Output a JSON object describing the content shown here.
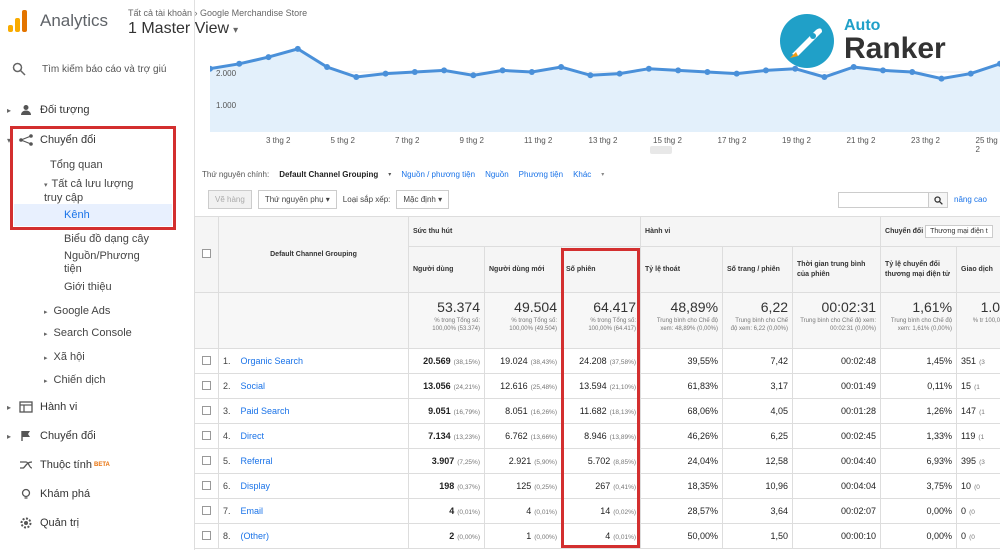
{
  "app": {
    "name": "Analytics",
    "crumb_all": "Tất cả tài khoản",
    "crumb_property": "Google Merchandise Store",
    "view_title": "1 Master View"
  },
  "search": {
    "placeholder": "Tìm kiếm báo cáo và trợ giú"
  },
  "nav": {
    "audience": "Đối tượng",
    "conversions_top": "Chuyển đổi",
    "overview": "Tổng quan",
    "all_traffic": "Tất cả lưu lượng truy cập",
    "channels": "Kênh",
    "treemap": "Biểu đồ dạng cây",
    "source_medium": "Nguồn/Phương tiện",
    "referrals": "Giới thiệu",
    "google_ads": "Google Ads",
    "search_console": "Search Console",
    "social": "Xã hội",
    "campaigns": "Chiến dịch",
    "behavior": "Hành vi",
    "conversions": "Chuyển đổi",
    "attribution": "Thuộc tính",
    "beta": "BETA",
    "discover": "Khám phá",
    "admin": "Quản trị"
  },
  "brand": {
    "line1": "Auto",
    "line2": "Ranker"
  },
  "chart": {
    "y_labels": [
      "2.000",
      "1.000"
    ],
    "x_labels": [
      "3 thg 2",
      "5 thg 2",
      "7 thg 2",
      "9 thg 2",
      "11 thg 2",
      "13 thg 2",
      "15 thg 2",
      "17 thg 2",
      "19 thg 2",
      "21 thg 2",
      "23 thg 2",
      "25 thg 2"
    ]
  },
  "chart_data": {
    "type": "area",
    "y_ticks": [
      1000,
      2000
    ],
    "x_tick_labels": [
      "3 thg 2",
      "5 thg 2",
      "7 thg 2",
      "9 thg 2",
      "11 thg 2",
      "13 thg 2",
      "15 thg 2",
      "17 thg 2",
      "19 thg 2",
      "21 thg 2",
      "23 thg 2",
      "25 thg 2"
    ],
    "values": [
      2100,
      2250,
      2450,
      2700,
      2150,
      1850,
      1950,
      2000,
      2050,
      1900,
      2050,
      2000,
      2150,
      1900,
      1950,
      2100,
      2050,
      2000,
      1950,
      2050,
      2100,
      1850,
      2150,
      2050,
      2000,
      1800,
      1950,
      2250
    ]
  },
  "dimensions": {
    "label": "Thứ nguyên chính:",
    "selected": "Default Channel Grouping",
    "opt1": "Nguồn / phương tiện",
    "opt2": "Nguồn",
    "opt3": "Phương tiện",
    "opt4": "Khác"
  },
  "controls": {
    "plot_rows": "Vẽ hàng",
    "secondary_dim": "Thứ nguyên phụ",
    "sort_type_label": "Loại sắp xếp:",
    "sort_default": "Mặc định",
    "advanced": "nâng cao"
  },
  "table": {
    "group_acq": "Sức thu hút",
    "group_beh": "Hành vi",
    "group_conv": "Chuyển đổi",
    "conv_select": "Thương mại điện t",
    "col_dim": "Default Channel Grouping",
    "cols": [
      "Người dùng",
      "Người dùng mới",
      "Số phiên",
      "Tỷ lệ thoát",
      "Số trang / phiên",
      "Thời gian trung bình của phiên",
      "Tỷ lệ chuyển đổi thương mại điện tử",
      "Giao dịch"
    ],
    "totals": [
      {
        "value": "53.374",
        "sub": "% trong Tổng số: 100,00% (53.374)"
      },
      {
        "value": "49.504",
        "sub": "% trong Tổng số: 100,00% (49.504)"
      },
      {
        "value": "64.417",
        "sub": "% trong Tổng số: 100,00% (64.417)"
      },
      {
        "value": "48,89%",
        "sub": "Trung bình cho Chế độ xem: 48,89% (0,00%)"
      },
      {
        "value": "6,22",
        "sub": "Trung bình cho Chế độ xem: 6,22 (0,00%)"
      },
      {
        "value": "00:02:31",
        "sub": "Trung bình cho Chế độ xem: 00:02:31 (0,00%)"
      },
      {
        "value": "1,61%",
        "sub": "Trung bình cho Chế độ xem: 1,61% (0,00%)"
      },
      {
        "value": "1.0",
        "sub": "% tr 100,0"
      }
    ],
    "rows": [
      {
        "n": "1.",
        "name": "Organic Search",
        "users": "20.569",
        "users_pct": "(38,15%)",
        "new": "19.024",
        "new_pct": "(38,43%)",
        "sess": "24.208",
        "sess_pct": "(37,58%)",
        "bounce": "39,55%",
        "pps": "7,42",
        "dur": "00:02:48",
        "conv": "1,45%",
        "tx": "351",
        "tx_pct": "(3"
      },
      {
        "n": "2.",
        "name": "Social",
        "users": "13.056",
        "users_pct": "(24,21%)",
        "new": "12.616",
        "new_pct": "(25,48%)",
        "sess": "13.594",
        "sess_pct": "(21,10%)",
        "bounce": "61,83%",
        "pps": "3,17",
        "dur": "00:01:49",
        "conv": "0,11%",
        "tx": "15",
        "tx_pct": "(1"
      },
      {
        "n": "3.",
        "name": "Paid Search",
        "users": "9.051",
        "users_pct": "(16,79%)",
        "new": "8.051",
        "new_pct": "(16,26%)",
        "sess": "11.682",
        "sess_pct": "(18,13%)",
        "bounce": "68,06%",
        "pps": "4,05",
        "dur": "00:01:28",
        "conv": "1,26%",
        "tx": "147",
        "tx_pct": "(1"
      },
      {
        "n": "4.",
        "name": "Direct",
        "users": "7.134",
        "users_pct": "(13,23%)",
        "new": "6.762",
        "new_pct": "(13,66%)",
        "sess": "8.946",
        "sess_pct": "(13,89%)",
        "bounce": "46,26%",
        "pps": "6,25",
        "dur": "00:02:45",
        "conv": "1,33%",
        "tx": "119",
        "tx_pct": "(1"
      },
      {
        "n": "5.",
        "name": "Referral",
        "users": "3.907",
        "users_pct": "(7,25%)",
        "new": "2.921",
        "new_pct": "(5,90%)",
        "sess": "5.702",
        "sess_pct": "(8,85%)",
        "bounce": "24,04%",
        "pps": "12,58",
        "dur": "00:04:40",
        "conv": "6,93%",
        "tx": "395",
        "tx_pct": "(3"
      },
      {
        "n": "6.",
        "name": "Display",
        "users": "198",
        "users_pct": "(0,37%)",
        "new": "125",
        "new_pct": "(0,25%)",
        "sess": "267",
        "sess_pct": "(0,41%)",
        "bounce": "18,35%",
        "pps": "10,96",
        "dur": "00:04:04",
        "conv": "3,75%",
        "tx": "10",
        "tx_pct": "(0"
      },
      {
        "n": "7.",
        "name": "Email",
        "users": "4",
        "users_pct": "(0,01%)",
        "new": "4",
        "new_pct": "(0,01%)",
        "sess": "14",
        "sess_pct": "(0,02%)",
        "bounce": "28,57%",
        "pps": "3,64",
        "dur": "00:02:07",
        "conv": "0,00%",
        "tx": "0",
        "tx_pct": "(0"
      },
      {
        "n": "8.",
        "name": "(Other)",
        "users": "2",
        "users_pct": "(0,00%)",
        "new": "1",
        "new_pct": "(0,00%)",
        "sess": "4",
        "sess_pct": "(0,01%)",
        "bounce": "50,00%",
        "pps": "1,50",
        "dur": "00:00:10",
        "conv": "0,00%",
        "tx": "0",
        "tx_pct": "(0"
      }
    ]
  },
  "colors": {
    "accent_blue": "#1a73e8",
    "highlight_red": "#d32f2f",
    "logo_orange": "#f9ab00",
    "logo_dark": "#e37400"
  }
}
